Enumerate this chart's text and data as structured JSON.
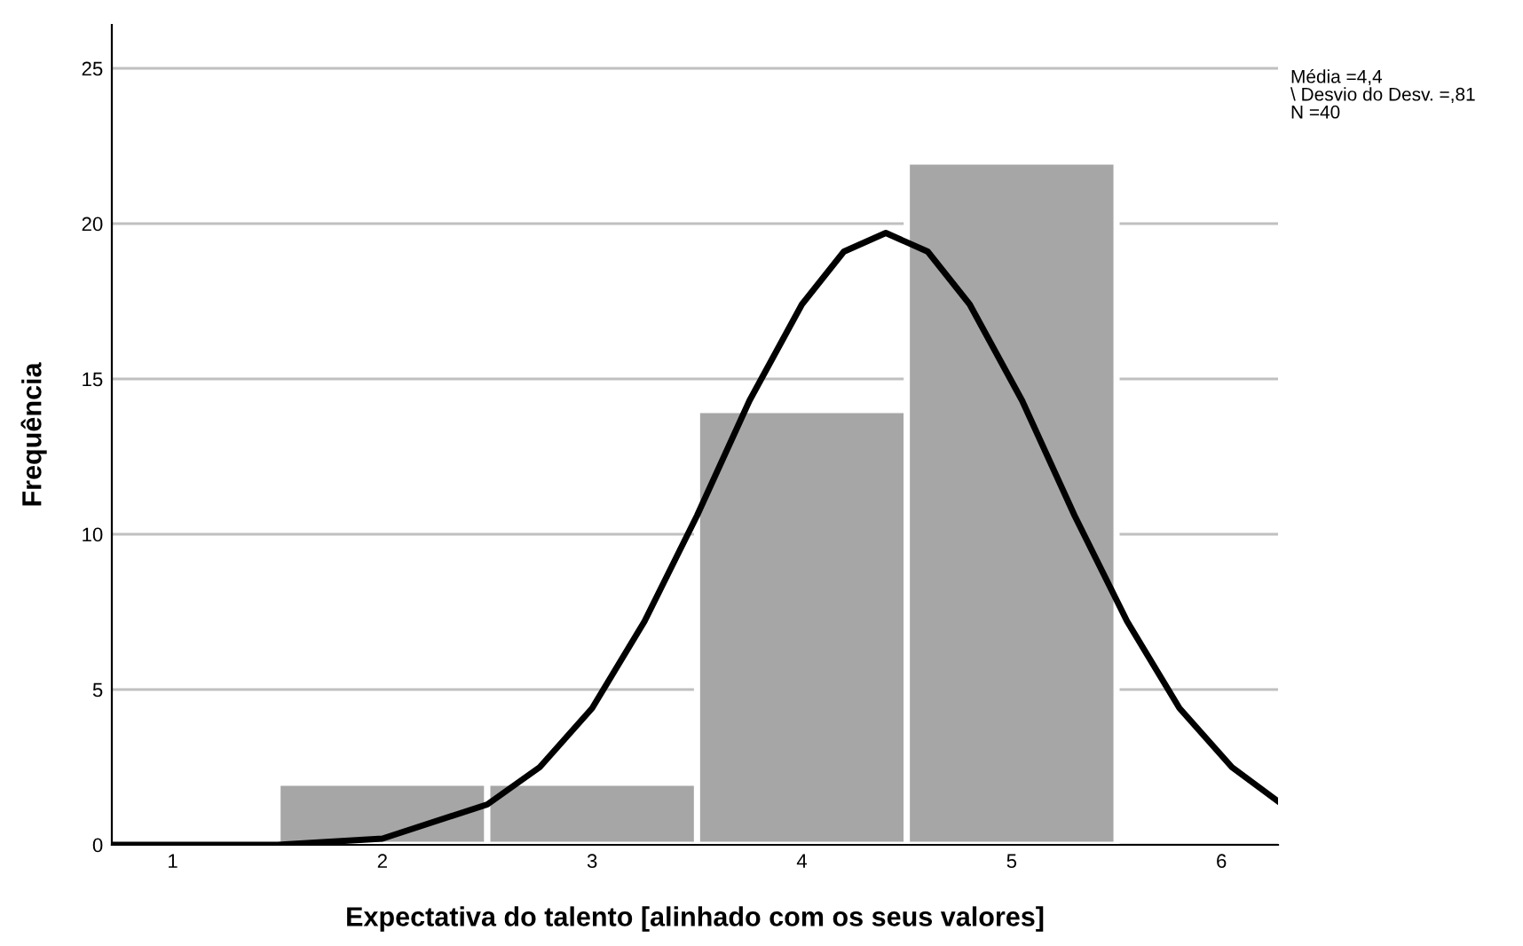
{
  "chart_data": {
    "type": "histogram",
    "xlabel": "Expectativa do talento [alinhado com os seus valores]",
    "ylabel": "Frequência",
    "bins": [
      1.5,
      2.5,
      3.5,
      4.5,
      5.5
    ],
    "values": [
      2,
      2,
      14,
      22
    ],
    "color": "#a6a6a6",
    "series": [
      {
        "type": "line",
        "color": "#000000",
        "x": [
          0.71,
          1.5,
          2,
          2.5,
          2.75,
          3,
          3.25,
          3.5,
          3.75,
          4,
          4.2,
          4.4,
          4.6,
          4.8,
          5.05,
          5.3,
          5.55,
          5.8,
          6.05,
          6.27
        ],
        "values": [
          0,
          0,
          0.2,
          1.3,
          2.5,
          4.4,
          7.2,
          10.6,
          14.3,
          17.4,
          19.1,
          19.7,
          19.1,
          17.4,
          14.3,
          10.6,
          7.2,
          4.4,
          2.5,
          1.4
        ]
      }
    ],
    "xlim": [
      0.71,
      6.27
    ],
    "xticks": [
      1,
      2,
      3,
      4,
      5,
      6
    ],
    "ylim": [
      0,
      26.4
    ],
    "yticks": [
      0,
      5,
      10,
      15,
      20,
      25
    ],
    "grid": "y",
    "legend": false,
    "annotations": [
      "Média =4,4",
      "\\ Desvio do Desv. =,81",
      "N =40"
    ]
  }
}
